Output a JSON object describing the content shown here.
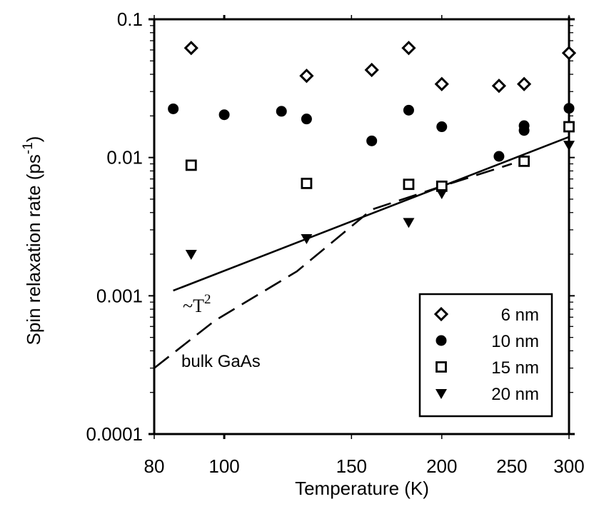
{
  "chart_data": {
    "type": "scatter",
    "title": "",
    "xlabel": "Temperature (K)",
    "ylabel": "Spin relaxation rate (ps",
    "ylabel_superscript": "-1",
    "ylabel_suffix": ")",
    "xscale": "log",
    "yscale": "log",
    "xlim": [
      80,
      300
    ],
    "ylim": [
      0.0001,
      0.1
    ],
    "xticks": [
      80,
      100,
      150,
      200,
      250,
      300
    ],
    "xtick_labels": [
      "80",
      "100",
      "150",
      "200",
      "250",
      "300"
    ],
    "yticks": [
      0.0001,
      0.001,
      0.01,
      0.1
    ],
    "ytick_labels": [
      "0.0001",
      "0.001",
      "0.01",
      "0.1"
    ],
    "grid": false,
    "legend": {
      "placement": "bottom-right",
      "entries": [
        {
          "label": "6 nm",
          "marker": "diamond-open"
        },
        {
          "label": "10 nm",
          "marker": "circle-filled"
        },
        {
          "label": "15 nm",
          "marker": "square-open"
        },
        {
          "label": "20 nm",
          "marker": "triangle-down-filled"
        }
      ]
    },
    "series": [
      {
        "name": "6 nm",
        "marker": "diamond-open",
        "x": [
          90,
          130,
          160,
          180,
          200,
          240,
          260,
          300
        ],
        "y": [
          0.062,
          0.039,
          0.043,
          0.062,
          0.034,
          0.033,
          0.034,
          0.057
        ]
      },
      {
        "name": "10 nm",
        "marker": "circle-filled",
        "x": [
          85,
          100,
          120,
          130,
          160,
          180,
          200,
          240,
          260,
          260,
          300
        ],
        "y": [
          0.0225,
          0.0204,
          0.0216,
          0.019,
          0.0132,
          0.022,
          0.0167,
          0.0102,
          0.017,
          0.0157,
          0.0227
        ]
      },
      {
        "name": "15 nm",
        "marker": "square-open",
        "x": [
          90,
          130,
          180,
          200,
          260,
          300
        ],
        "y": [
          0.0088,
          0.0065,
          0.0064,
          0.0062,
          0.0094,
          0.0167
        ]
      },
      {
        "name": "20 nm",
        "marker": "triangle-down-filled",
        "x": [
          90,
          130,
          180,
          200,
          300
        ],
        "y": [
          0.002,
          0.0026,
          0.0034,
          0.0055,
          0.0123
        ]
      }
    ],
    "lines": [
      {
        "name": "~T^2 fit",
        "style": "solid",
        "x": [
          85,
          300
        ],
        "y": [
          0.00109,
          0.0141
        ]
      },
      {
        "name": "bulk GaAs",
        "style": "dashed",
        "x": [
          80,
          97,
          126,
          160,
          200,
          250
        ],
        "y": [
          0.0003,
          0.00066,
          0.0015,
          0.0042,
          0.0062,
          0.009
        ]
      }
    ],
    "annotations": [
      {
        "text_main": "~T",
        "text_sup": "2",
        "near": "solid line, lower-left"
      },
      {
        "text": "bulk GaAs",
        "near": "dashed line, lower-left"
      }
    ]
  }
}
